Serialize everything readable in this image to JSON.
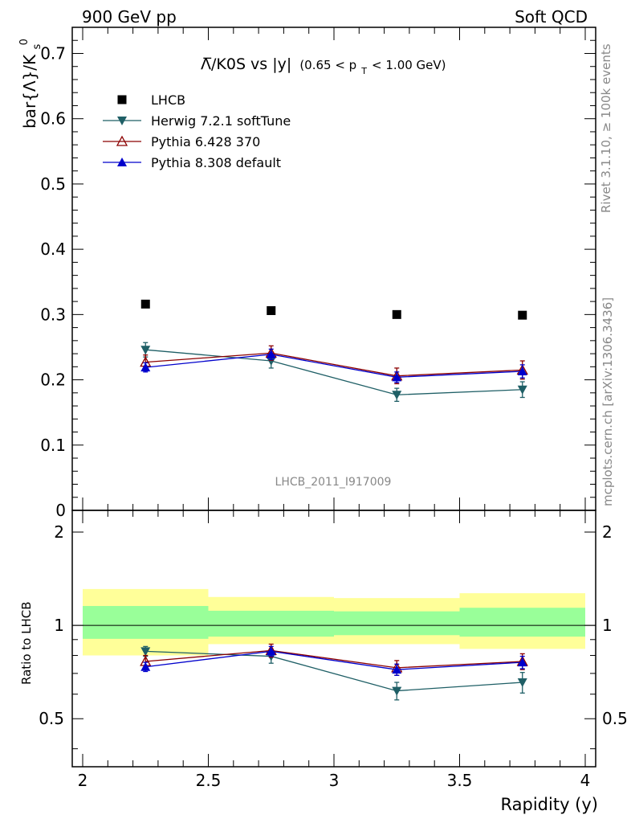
{
  "header": {
    "left": "900 GeV pp",
    "right": "Soft QCD"
  },
  "side_text": {
    "top": "Rivet 3.1.10, ≥ 100k events",
    "bottom": "mcplots.cern.ch [arXiv:1306.3436]"
  },
  "watermark": "LHCB_2011_I917009",
  "chart_data": [
    {
      "type": "scatter",
      "title_main": "Λ̅/K0S vs |y|",
      "title_cut": "(0.65 < p",
      "title_cut_sub": "T",
      "title_cut_end": " < 1.00 GeV)",
      "ylabel": "bar{Λ}/K",
      "ylabel_sub": "s",
      "ylabel_sup": "0",
      "xlim": [
        2,
        4
      ],
      "ylim": [
        0,
        0.74
      ],
      "yticks": [
        "0",
        "0.1",
        "0.2",
        "0.3",
        "0.4",
        "0.5",
        "0.6",
        "0.7"
      ],
      "x": [
        2.25,
        2.75,
        3.25,
        3.75
      ],
      "series": [
        {
          "name": "LHCB",
          "color": "#000000",
          "marker": "square",
          "values": [
            0.316,
            0.306,
            0.3,
            0.299
          ],
          "err": [
            0.0,
            0.0,
            0.0,
            0.0
          ]
        },
        {
          "name": "Herwig 7.2.1 softTune",
          "color": "#1f5f66",
          "marker": "triangle-down",
          "values": [
            0.246,
            0.229,
            0.177,
            0.185
          ],
          "err": [
            0.011,
            0.011,
            0.01,
            0.012
          ]
        },
        {
          "name": "Pythia 6.428 370",
          "color": "#8b0000",
          "marker": "triangle-up-open",
          "values": [
            0.227,
            0.241,
            0.206,
            0.215
          ],
          "err": [
            0.011,
            0.011,
            0.012,
            0.014
          ]
        },
        {
          "name": "Pythia 8.308 default",
          "color": "#0000cc",
          "marker": "triangle-up",
          "values": [
            0.219,
            0.239,
            0.204,
            0.213
          ],
          "err": [
            0.007,
            0.008,
            0.008,
            0.01
          ]
        }
      ]
    },
    {
      "type": "scatter",
      "ylabel": "Ratio to LHCB",
      "xlabel": "Rapidity (y)",
      "xlim": [
        2,
        4
      ],
      "ylim": [
        0.35,
        2.35
      ],
      "log_y": true,
      "xticks": [
        "2",
        "2.5",
        "3",
        "3.5",
        "4"
      ],
      "yticks": [
        "0.5",
        "1",
        "2"
      ],
      "bands": [
        {
          "x0": 2.0,
          "x1": 2.5,
          "inner": [
            0.905,
            1.155
          ],
          "outer": [
            0.8,
            1.31
          ]
        },
        {
          "x0": 2.5,
          "x1": 3.0,
          "inner": [
            0.92,
            1.115
          ],
          "outer": [
            0.87,
            1.235
          ]
        },
        {
          "x0": 3.0,
          "x1": 3.5,
          "inner": [
            0.93,
            1.11
          ],
          "outer": [
            0.87,
            1.225
          ]
        },
        {
          "x0": 3.5,
          "x1": 4.0,
          "inner": [
            0.92,
            1.14
          ],
          "outer": [
            0.84,
            1.27
          ]
        }
      ],
      "band_colors": {
        "inner": "#99ff99",
        "outer": "#ffff99"
      },
      "x": [
        2.25,
        2.75,
        3.25,
        3.75
      ],
      "series": [
        {
          "name": "Herwig 7.2.1 softTune",
          "color": "#1f5f66",
          "marker": "triangle-down",
          "values": [
            0.825,
            0.795,
            0.615,
            0.655
          ],
          "err": [
            0.03,
            0.04,
            0.04,
            0.05
          ]
        },
        {
          "name": "Pythia 6.428 370",
          "color": "#8b0000",
          "marker": "triangle-up-open",
          "values": [
            0.765,
            0.83,
            0.73,
            0.765
          ],
          "err": [
            0.035,
            0.04,
            0.04,
            0.045
          ]
        },
        {
          "name": "Pythia 8.308 default",
          "color": "#0000cc",
          "marker": "triangle-up",
          "values": [
            0.735,
            0.825,
            0.72,
            0.76
          ],
          "err": [
            0.025,
            0.03,
            0.03,
            0.035
          ]
        }
      ]
    }
  ]
}
